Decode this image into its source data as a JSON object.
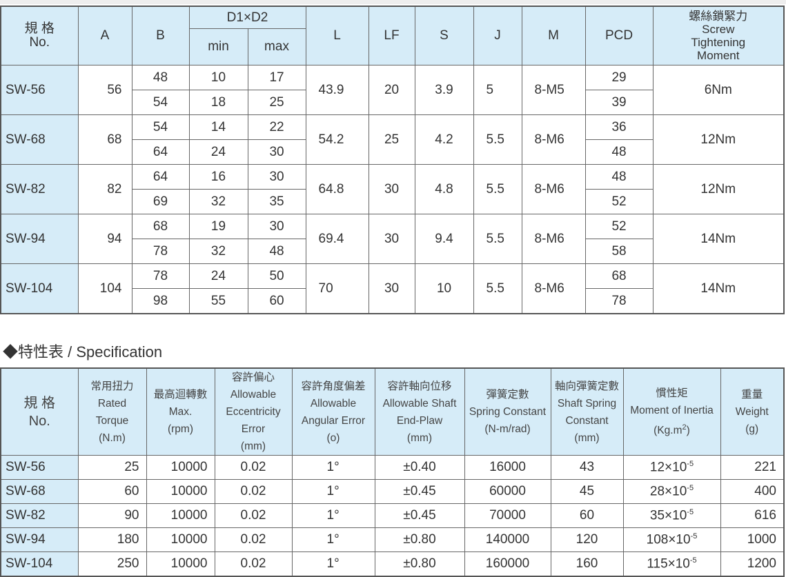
{
  "dimension_table": {
    "headers": {
      "no_zh": "規 格",
      "no_en": "No.",
      "A": "A",
      "B": "B",
      "D": "D1×D2",
      "min": "min",
      "max": "max",
      "L": "L",
      "LF": "LF",
      "S": "S",
      "J": "J",
      "M": "M",
      "PCD": "PCD",
      "screw_zh": "螺絲鎖緊力",
      "screw_en1": "Screw",
      "screw_en2": "Tightening",
      "screw_en3": "Moment"
    },
    "rows": [
      {
        "no": "SW-56",
        "A": "56",
        "B": [
          "48",
          "54"
        ],
        "min": [
          "10",
          "18"
        ],
        "max": [
          "17",
          "25"
        ],
        "L": "43.9",
        "LF": "20",
        "S": "3.9",
        "J": "5",
        "M": "8-M5",
        "PCD": [
          "29",
          "39"
        ],
        "torque": "6Nm"
      },
      {
        "no": "SW-68",
        "A": "68",
        "B": [
          "54",
          "64"
        ],
        "min": [
          "14",
          "24"
        ],
        "max": [
          "22",
          "30"
        ],
        "L": "54.2",
        "LF": "25",
        "S": "4.2",
        "J": "5.5",
        "M": "8-M6",
        "PCD": [
          "36",
          "48"
        ],
        "torque": "12Nm"
      },
      {
        "no": "SW-82",
        "A": "82",
        "B": [
          "64",
          "69"
        ],
        "min": [
          "16",
          "32"
        ],
        "max": [
          "30",
          "35"
        ],
        "L": "64.8",
        "LF": "30",
        "S": "4.8",
        "J": "5.5",
        "M": "8-M6",
        "PCD": [
          "48",
          "52"
        ],
        "torque": "12Nm"
      },
      {
        "no": "SW-94",
        "A": "94",
        "B": [
          "68",
          "78"
        ],
        "min": [
          "19",
          "32"
        ],
        "max": [
          "30",
          "48"
        ],
        "L": "69.4",
        "LF": "30",
        "S": "9.4",
        "J": "5.5",
        "M": "8-M6",
        "PCD": [
          "52",
          "58"
        ],
        "torque": "14Nm"
      },
      {
        "no": "SW-104",
        "A": "104",
        "B": [
          "78",
          "98"
        ],
        "min": [
          "24",
          "55"
        ],
        "max": [
          "50",
          "60"
        ],
        "L": "70",
        "LF": "30",
        "S": "10",
        "J": "5.5",
        "M": "8-M6",
        "PCD": [
          "68",
          "78"
        ],
        "torque": "14Nm"
      }
    ]
  },
  "spec_title": "◆特性表 / Specification",
  "spec_table": {
    "headers": [
      [
        "規 格",
        "No."
      ],
      [
        "常用扭力",
        "Rated",
        "Torque",
        "(N.m)"
      ],
      [
        "最高迴轉數",
        "Max.",
        "(rpm)"
      ],
      [
        "容許偏心",
        "Allowable",
        "Eccentricity",
        "Error",
        "(mm)"
      ],
      [
        "容許角度偏差",
        "Allowable",
        "Angular Error",
        "(o)"
      ],
      [
        "容許軸向位移",
        "Allowable Shaft",
        "End-Plaw",
        "(mm)"
      ],
      [
        "彈簧定數",
        "Spring Constant",
        "(N-m/rad)"
      ],
      [
        "軸向彈簧定數",
        "Shaft Spring",
        "Constant",
        "(mm)"
      ],
      [
        "慣性矩",
        "Moment of Inertia",
        "(Kg.m",
        "2",
        ")"
      ],
      [
        "重量",
        "Weight",
        "(g)"
      ]
    ],
    "rows": [
      {
        "no": "SW-56",
        "torque": "25",
        "rpm": "10000",
        "ecc": "0.02",
        "ang": "1°",
        "end": "±0.40",
        "spring": "16000",
        "shaft": "43",
        "inertia": "12×10",
        "exp": "-5",
        "weight": "221"
      },
      {
        "no": "SW-68",
        "torque": "60",
        "rpm": "10000",
        "ecc": "0.02",
        "ang": "1°",
        "end": "±0.45",
        "spring": "60000",
        "shaft": "45",
        "inertia": "28×10",
        "exp": "-5",
        "weight": "400"
      },
      {
        "no": "SW-82",
        "torque": "90",
        "rpm": "10000",
        "ecc": "0.02",
        "ang": "1°",
        "end": "±0.45",
        "spring": "70000",
        "shaft": "60",
        "inertia": "35×10",
        "exp": "-5",
        "weight": "616"
      },
      {
        "no": "SW-94",
        "torque": "180",
        "rpm": "10000",
        "ecc": "0.02",
        "ang": "1°",
        "end": "±0.80",
        "spring": "140000",
        "shaft": "120",
        "inertia": "108×10",
        "exp": "-5",
        "weight": "1000"
      },
      {
        "no": "SW-104",
        "torque": "250",
        "rpm": "10000",
        "ecc": "0.02",
        "ang": "1°",
        "end": "±0.80",
        "spring": "160000",
        "shaft": "160",
        "inertia": "115×10",
        "exp": "-5",
        "weight": "1200"
      }
    ]
  }
}
